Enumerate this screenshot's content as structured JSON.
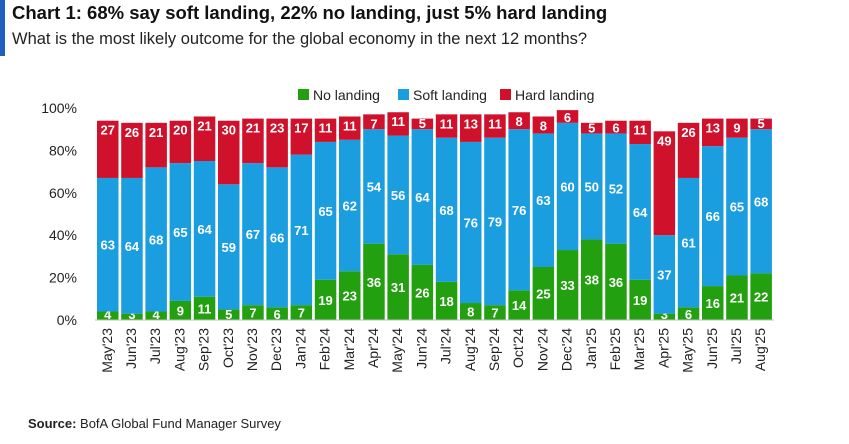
{
  "header": {
    "title": "Chart 1: 68% say soft landing, 22% no landing, just 5% hard landing",
    "subtitle": "What is the most likely outcome for the global economy in the next 12 months?"
  },
  "source": {
    "label": "Source:",
    "text": "BofA Global Fund Manager Survey"
  },
  "colors": {
    "accent": "#1f5fbf",
    "no_landing": "#22a00f",
    "soft_landing": "#1a9ee0",
    "hard_landing": "#d0112b"
  },
  "chart_data": {
    "type": "bar",
    "stacked": true,
    "title": "",
    "xlabel": "",
    "ylabel": "",
    "ylim": [
      0,
      100
    ],
    "y_ticks": [
      "0%",
      "20%",
      "40%",
      "60%",
      "80%",
      "100%"
    ],
    "legend_position": "top",
    "categories": [
      "May'23",
      "Jun'23",
      "Jul'23",
      "Aug'23",
      "Sep'23",
      "Oct'23",
      "Nov'23",
      "Dec'23",
      "Jan'24",
      "Feb'24",
      "Mar'24",
      "Apr'24",
      "May'24",
      "Jun'24",
      "Jul'24",
      "Aug'24",
      "Sep'24",
      "Oct'24",
      "Nov'24",
      "Dec'24",
      "Jan'25",
      "Feb'25",
      "Mar'25",
      "Apr'25",
      "May'25",
      "Jun'25",
      "Jul'25",
      "Aug'25"
    ],
    "series": [
      {
        "name": "No landing",
        "color": "#22a00f",
        "values": [
          4,
          3,
          4,
          9,
          11,
          5,
          7,
          6,
          7,
          19,
          23,
          36,
          31,
          26,
          18,
          8,
          7,
          14,
          25,
          33,
          38,
          36,
          19,
          3,
          6,
          16,
          21,
          22
        ]
      },
      {
        "name": "Soft landing",
        "color": "#1a9ee0",
        "values": [
          63,
          64,
          68,
          65,
          64,
          59,
          67,
          66,
          71,
          65,
          62,
          54,
          56,
          64,
          68,
          76,
          79,
          76,
          63,
          60,
          50,
          52,
          64,
          37,
          61,
          66,
          65,
          68
        ]
      },
      {
        "name": "Hard landing",
        "color": "#d0112b",
        "values": [
          27,
          26,
          21,
          20,
          21,
          30,
          21,
          23,
          17,
          11,
          11,
          7,
          11,
          5,
          11,
          13,
          11,
          8,
          8,
          6,
          5,
          6,
          11,
          49,
          26,
          13,
          9,
          5
        ]
      }
    ]
  }
}
